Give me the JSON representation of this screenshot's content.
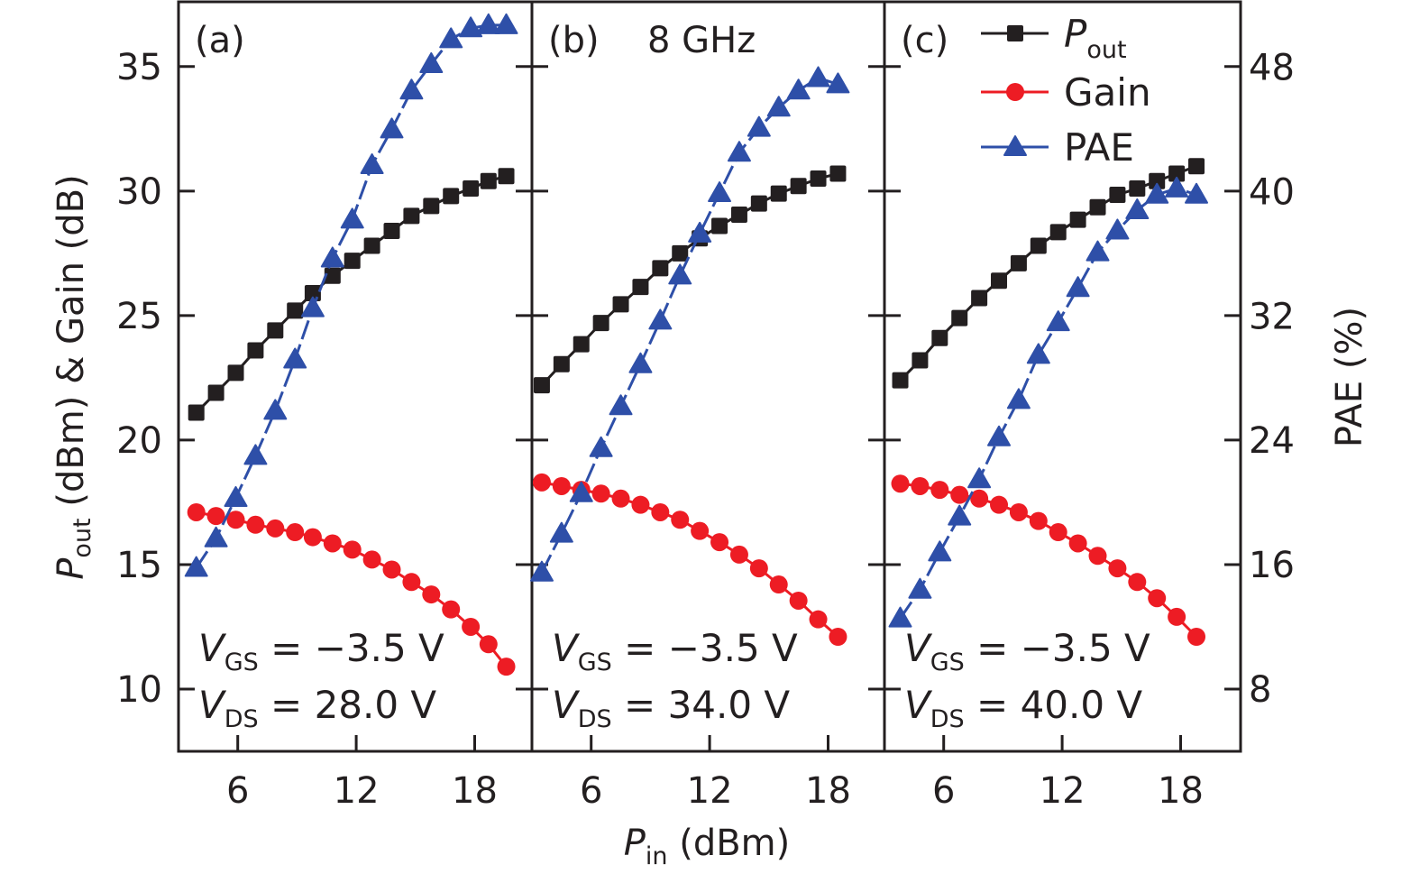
{
  "chart_data": {
    "type": "line",
    "title": "",
    "shared": {
      "xlabel_main": "P",
      "xlabel_sub": "in",
      "xlabel_unit": " (dBm)",
      "ylabel_left_main": "P",
      "ylabel_left_sub": "out",
      "ylabel_left_rest": " (dBm) & Gain (dB)",
      "ylabel_right": "PAE (%)",
      "xlim": [
        3.0,
        20.9
      ],
      "xticks": [
        6,
        12,
        18
      ],
      "ylim_left": [
        7.5,
        37.6
      ],
      "yticks_left": [
        10,
        15,
        20,
        25,
        30,
        35
      ],
      "ylim_right": [
        4,
        52.2
      ],
      "yticks_right": [
        8,
        16,
        24,
        32,
        40,
        48
      ],
      "grid": false,
      "legend_position": "top-right (in panel c)"
    },
    "legend": [
      {
        "name_main": "P",
        "name_sub": "out",
        "marker": "square",
        "color": "#231f20",
        "line": "solid",
        "axis": "left"
      },
      {
        "name_main": "Gain",
        "name_sub": "",
        "marker": "circle",
        "color": "#ed1c24",
        "line": "solid",
        "axis": "left"
      },
      {
        "name_main": "PAE",
        "name_sub": "",
        "marker": "triangle",
        "color": "#2e4fa8",
        "line": "dashed",
        "axis": "right"
      }
    ],
    "panels": [
      {
        "label": "(a)",
        "extra_label": "",
        "vgs_text": "= −3.5 V",
        "vds_text": "= 28.0 V",
        "x": [
          3.9,
          4.9,
          5.9,
          6.9,
          7.9,
          8.9,
          9.8,
          10.8,
          11.8,
          12.8,
          13.8,
          14.8,
          15.8,
          16.8,
          17.8,
          18.7,
          19.6
        ],
        "series": [
          {
            "name": "Pout",
            "values": [
              21.1,
              21.9,
              22.7,
              23.6,
              24.4,
              25.2,
              25.9,
              26.6,
              27.2,
              27.8,
              28.4,
              29.0,
              29.4,
              29.8,
              30.1,
              30.4,
              30.6
            ]
          },
          {
            "name": "Gain",
            "values": [
              17.1,
              16.95,
              16.8,
              16.6,
              16.45,
              16.3,
              16.1,
              15.85,
              15.6,
              15.2,
              14.8,
              14.3,
              13.8,
              13.2,
              12.5,
              11.8,
              10.9
            ]
          },
          {
            "name": "PAE",
            "values": [
              15.8,
              17.7,
              20.3,
              23.0,
              25.9,
              29.2,
              32.5,
              35.7,
              38.2,
              41.7,
              44.0,
              46.5,
              48.2,
              49.8,
              50.5,
              50.7,
              50.7
            ]
          }
        ]
      },
      {
        "label": "(b)",
        "extra_label": "8 GHz",
        "vgs_text": "= −3.5 V",
        "vds_text": "= 34.0 V",
        "x": [
          3.5,
          4.5,
          5.5,
          6.5,
          7.5,
          8.5,
          9.5,
          10.5,
          11.5,
          12.5,
          13.5,
          14.5,
          15.5,
          16.5,
          17.5,
          18.5
        ],
        "series": [
          {
            "name": "Pout",
            "values": [
              22.2,
              23.05,
              23.85,
              24.7,
              25.45,
              26.15,
              26.9,
              27.5,
              28.1,
              28.6,
              29.05,
              29.5,
              29.9,
              30.2,
              30.5,
              30.7
            ]
          },
          {
            "name": "Gain",
            "values": [
              18.3,
              18.15,
              18.0,
              17.85,
              17.65,
              17.4,
              17.1,
              16.8,
              16.35,
              15.9,
              15.4,
              14.85,
              14.2,
              13.55,
              12.8,
              12.1
            ]
          },
          {
            "name": "PAE",
            "values": [
              15.5,
              18.0,
              20.6,
              23.5,
              26.2,
              28.9,
              31.7,
              34.6,
              37.3,
              39.9,
              42.5,
              44.1,
              45.4,
              46.5,
              47.3,
              46.9
            ]
          }
        ]
      },
      {
        "label": "(c)",
        "extra_label": "",
        "vgs_text": "= −3.5 V",
        "vds_text": "= 40.0 V",
        "x": [
          3.8,
          4.8,
          5.8,
          6.8,
          7.8,
          8.8,
          9.8,
          10.8,
          11.8,
          12.8,
          13.8,
          14.8,
          15.8,
          16.8,
          17.8,
          18.8
        ],
        "series": [
          {
            "name": "Pout",
            "values": [
              22.4,
              23.2,
              24.1,
              24.9,
              25.7,
              26.4,
              27.1,
              27.8,
              28.35,
              28.85,
              29.35,
              29.85,
              30.1,
              30.4,
              30.7,
              31.0
            ]
          },
          {
            "name": "Gain",
            "values": [
              18.25,
              18.15,
              18.0,
              17.8,
              17.65,
              17.4,
              17.1,
              16.75,
              16.3,
              15.85,
              15.35,
              14.85,
              14.3,
              13.65,
              12.9,
              12.1
            ]
          },
          {
            "name": "PAE",
            "values": [
              12.55,
              14.4,
              16.8,
              19.1,
              21.5,
              24.2,
              26.6,
              29.5,
              31.6,
              33.8,
              36.1,
              37.5,
              38.8,
              39.8,
              40.2,
              39.8
            ]
          }
        ]
      }
    ],
    "annotation_labels": {
      "v": "V",
      "gs": "GS",
      "ds": "DS"
    }
  }
}
